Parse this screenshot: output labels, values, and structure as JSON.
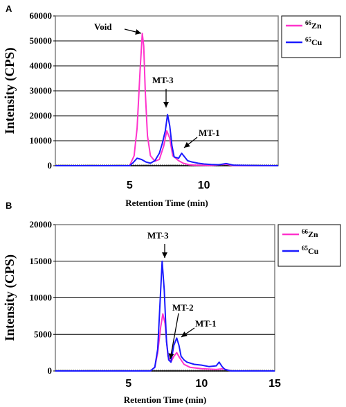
{
  "colors": {
    "zn": "#ff33cc",
    "cu": "#1a1aff",
    "frame": "#808080",
    "grid": "#000000",
    "background": "#ffffff"
  },
  "chart_data": [
    {
      "panel": "A",
      "type": "line",
      "xlabel": "Retention Time (min)",
      "ylabel": "Intensity (CPS)",
      "xlim": [
        0,
        15
      ],
      "ylim": [
        0,
        60000
      ],
      "yticks": [
        0,
        10000,
        20000,
        30000,
        40000,
        50000,
        60000
      ],
      "ytick_labels": [
        "0",
        "10000",
        "20000",
        "30000",
        "40000",
        "50000",
        "60000"
      ],
      "xticks": [
        5,
        10
      ],
      "xtick_labels": [
        "5",
        "10"
      ],
      "grid": true,
      "legend_position": "right",
      "legend": [
        "66Zn",
        "65Cu"
      ],
      "series": [
        {
          "name": "66Zn",
          "color": "#ff33cc",
          "x": [
            0,
            5,
            5.3,
            5.5,
            5.7,
            5.85,
            5.95,
            6.05,
            6.2,
            6.4,
            6.7,
            7.0,
            7.3,
            7.5,
            7.7,
            7.9,
            8.1,
            8.3,
            8.6,
            9.0,
            9.5,
            10.5,
            11.5,
            12,
            15
          ],
          "y": [
            0,
            0,
            4000,
            15000,
            38000,
            53000,
            48000,
            30000,
            12000,
            4000,
            1800,
            2500,
            8000,
            14000,
            11000,
            4000,
            3000,
            2000,
            1000,
            400,
            200,
            100,
            600,
            0,
            0
          ]
        },
        {
          "name": "65Cu",
          "color": "#1a1aff",
          "x": [
            0,
            5,
            5.2,
            5.5,
            5.8,
            6.1,
            6.4,
            6.7,
            7.0,
            7.2,
            7.4,
            7.55,
            7.7,
            7.85,
            8.0,
            8.3,
            8.5,
            8.7,
            8.9,
            9.2,
            9.6,
            10,
            10.5,
            11,
            11.5,
            12,
            13,
            15
          ],
          "y": [
            0,
            0,
            1000,
            3000,
            2500,
            1500,
            1000,
            2000,
            5000,
            9000,
            14000,
            20500,
            16000,
            8000,
            3500,
            3000,
            5000,
            3500,
            2000,
            1500,
            1000,
            700,
            500,
            400,
            900,
            200,
            100,
            0
          ]
        }
      ],
      "annotations": [
        {
          "text": "Void",
          "x": 5.9,
          "y": 53000
        },
        {
          "text": "MT-3",
          "x": 7.55,
          "y": 20500
        },
        {
          "text": "MT-1",
          "x": 8.6,
          "y": 5000
        }
      ]
    },
    {
      "panel": "B",
      "type": "line",
      "xlabel": "Retention Time (min)",
      "ylabel": "Intensity (CPS)",
      "xlim": [
        0,
        15
      ],
      "ylim": [
        0,
        20000
      ],
      "yticks": [
        0,
        5000,
        10000,
        15000,
        20000
      ],
      "ytick_labels": [
        "0",
        "5000",
        "10000",
        "15000",
        "20000"
      ],
      "xticks": [
        5,
        10,
        15
      ],
      "xtick_labels": [
        "5",
        "10",
        "15"
      ],
      "grid": true,
      "legend_position": "right",
      "legend": [
        "66Zn",
        "65Cu"
      ],
      "series": [
        {
          "name": "66Zn",
          "color": "#ff33cc",
          "x": [
            0,
            6.5,
            6.8,
            7.0,
            7.2,
            7.35,
            7.5,
            7.7,
            7.9,
            8.1,
            8.3,
            8.5,
            8.8,
            9.2,
            10,
            11,
            11.5,
            12,
            15
          ],
          "y": [
            0,
            0,
            500,
            2500,
            6000,
            7800,
            6500,
            2000,
            1200,
            2000,
            2500,
            1800,
            900,
            500,
            300,
            200,
            300,
            0,
            0
          ]
        },
        {
          "name": "65Cu",
          "color": "#1a1aff",
          "x": [
            0,
            6.5,
            6.8,
            7.0,
            7.15,
            7.3,
            7.45,
            7.6,
            7.75,
            7.9,
            8.1,
            8.3,
            8.45,
            8.6,
            8.8,
            9.0,
            9.5,
            10,
            10.5,
            11,
            11.2,
            11.4,
            11.6,
            12,
            15
          ],
          "y": [
            0,
            0,
            500,
            3000,
            9000,
            15000,
            11000,
            4000,
            1500,
            1200,
            3500,
            4500,
            3500,
            2000,
            1500,
            1200,
            900,
            800,
            600,
            700,
            1200,
            600,
            200,
            0,
            0
          ]
        }
      ],
      "annotations": [
        {
          "text": "MT-3",
          "x": 7.3,
          "y": 15000
        },
        {
          "text": "MT-2",
          "x": 7.8,
          "y": 1500
        },
        {
          "text": "MT-1",
          "x": 8.35,
          "y": 4500
        }
      ]
    }
  ]
}
